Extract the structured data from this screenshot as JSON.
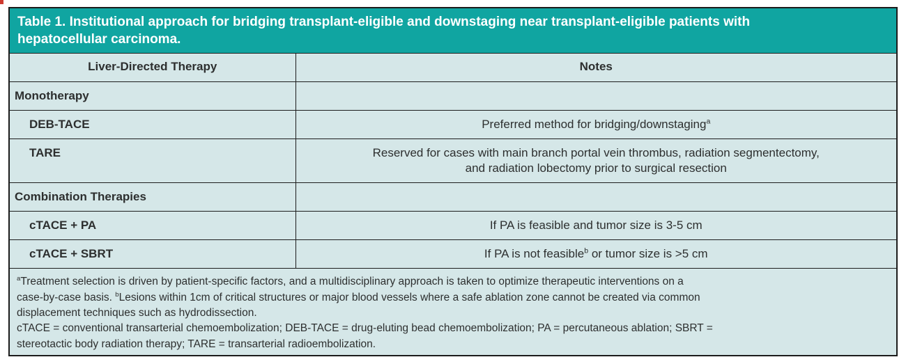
{
  "colors": {
    "banner_bg": "#10a5a1",
    "banner_text": "#ffffff",
    "cell_bg": "#d5e7e8",
    "border": "#1c1c1c",
    "text": "#2d2f2f",
    "artifact": "#cf3a30"
  },
  "title_parts": [
    {
      "text": "Table 1. Institutional approach for bridging transplant-eligible and downstaging near transplant-eligible patients with"
    },
    {
      "br": true
    },
    {
      "text": "hepatocellular carcinoma."
    }
  ],
  "table": {
    "columns": {
      "therapy": "Liver-Directed Therapy",
      "notes": "Notes"
    },
    "rows": [
      {
        "therapy": "Monotherapy",
        "indent": false,
        "note_parts": []
      },
      {
        "therapy": "DEB-TACE",
        "indent": true,
        "note_parts": [
          {
            "text": "Preferred method for bridging/downstaging"
          },
          {
            "text": "a",
            "sup": true
          }
        ]
      },
      {
        "therapy": "TARE",
        "indent": true,
        "note_parts": [
          {
            "text": "Reserved for cases with main branch portal vein thrombus, radiation segmentectomy,"
          },
          {
            "br": true
          },
          {
            "text": "and radiation lobectomy prior to surgical resection"
          }
        ]
      },
      {
        "therapy": "Combination Therapies",
        "indent": false,
        "note_parts": []
      },
      {
        "therapy": "cTACE + PA",
        "indent": true,
        "note_parts": [
          {
            "text": "If PA is feasible and tumor size is 3-5 cm"
          }
        ]
      },
      {
        "therapy": "cTACE + SBRT",
        "indent": true,
        "note_parts": [
          {
            "text": "If PA is not feasible"
          },
          {
            "text": "b",
            "sup": true
          },
          {
            "text": " or tumor size is >5 cm"
          }
        ]
      }
    ]
  },
  "footnotes": [
    [
      {
        "text": "a",
        "sup": true
      },
      {
        "text": "Treatment selection is driven by patient-specific factors, and a multidisciplinary approach is taken to optimize therapeutic interventions on a"
      },
      {
        "br": true
      },
      {
        "text": "case-by-case basis. "
      },
      {
        "text": "b",
        "sup": true
      },
      {
        "text": "Lesions within 1cm of critical structures or major blood vessels where a safe ablation zone cannot be created via common"
      },
      {
        "br": true
      },
      {
        "text": "displacement techniques such as hydrodissection."
      }
    ],
    [
      {
        "text": "cTACE = conventional transarterial chemoembolization; DEB-TACE = drug-eluting bead chemoembolization; PA = percutaneous ablation; SBRT ="
      },
      {
        "br": true
      },
      {
        "text": "stereotactic body radiation therapy; TARE = transarterial radioembolization."
      }
    ]
  ]
}
